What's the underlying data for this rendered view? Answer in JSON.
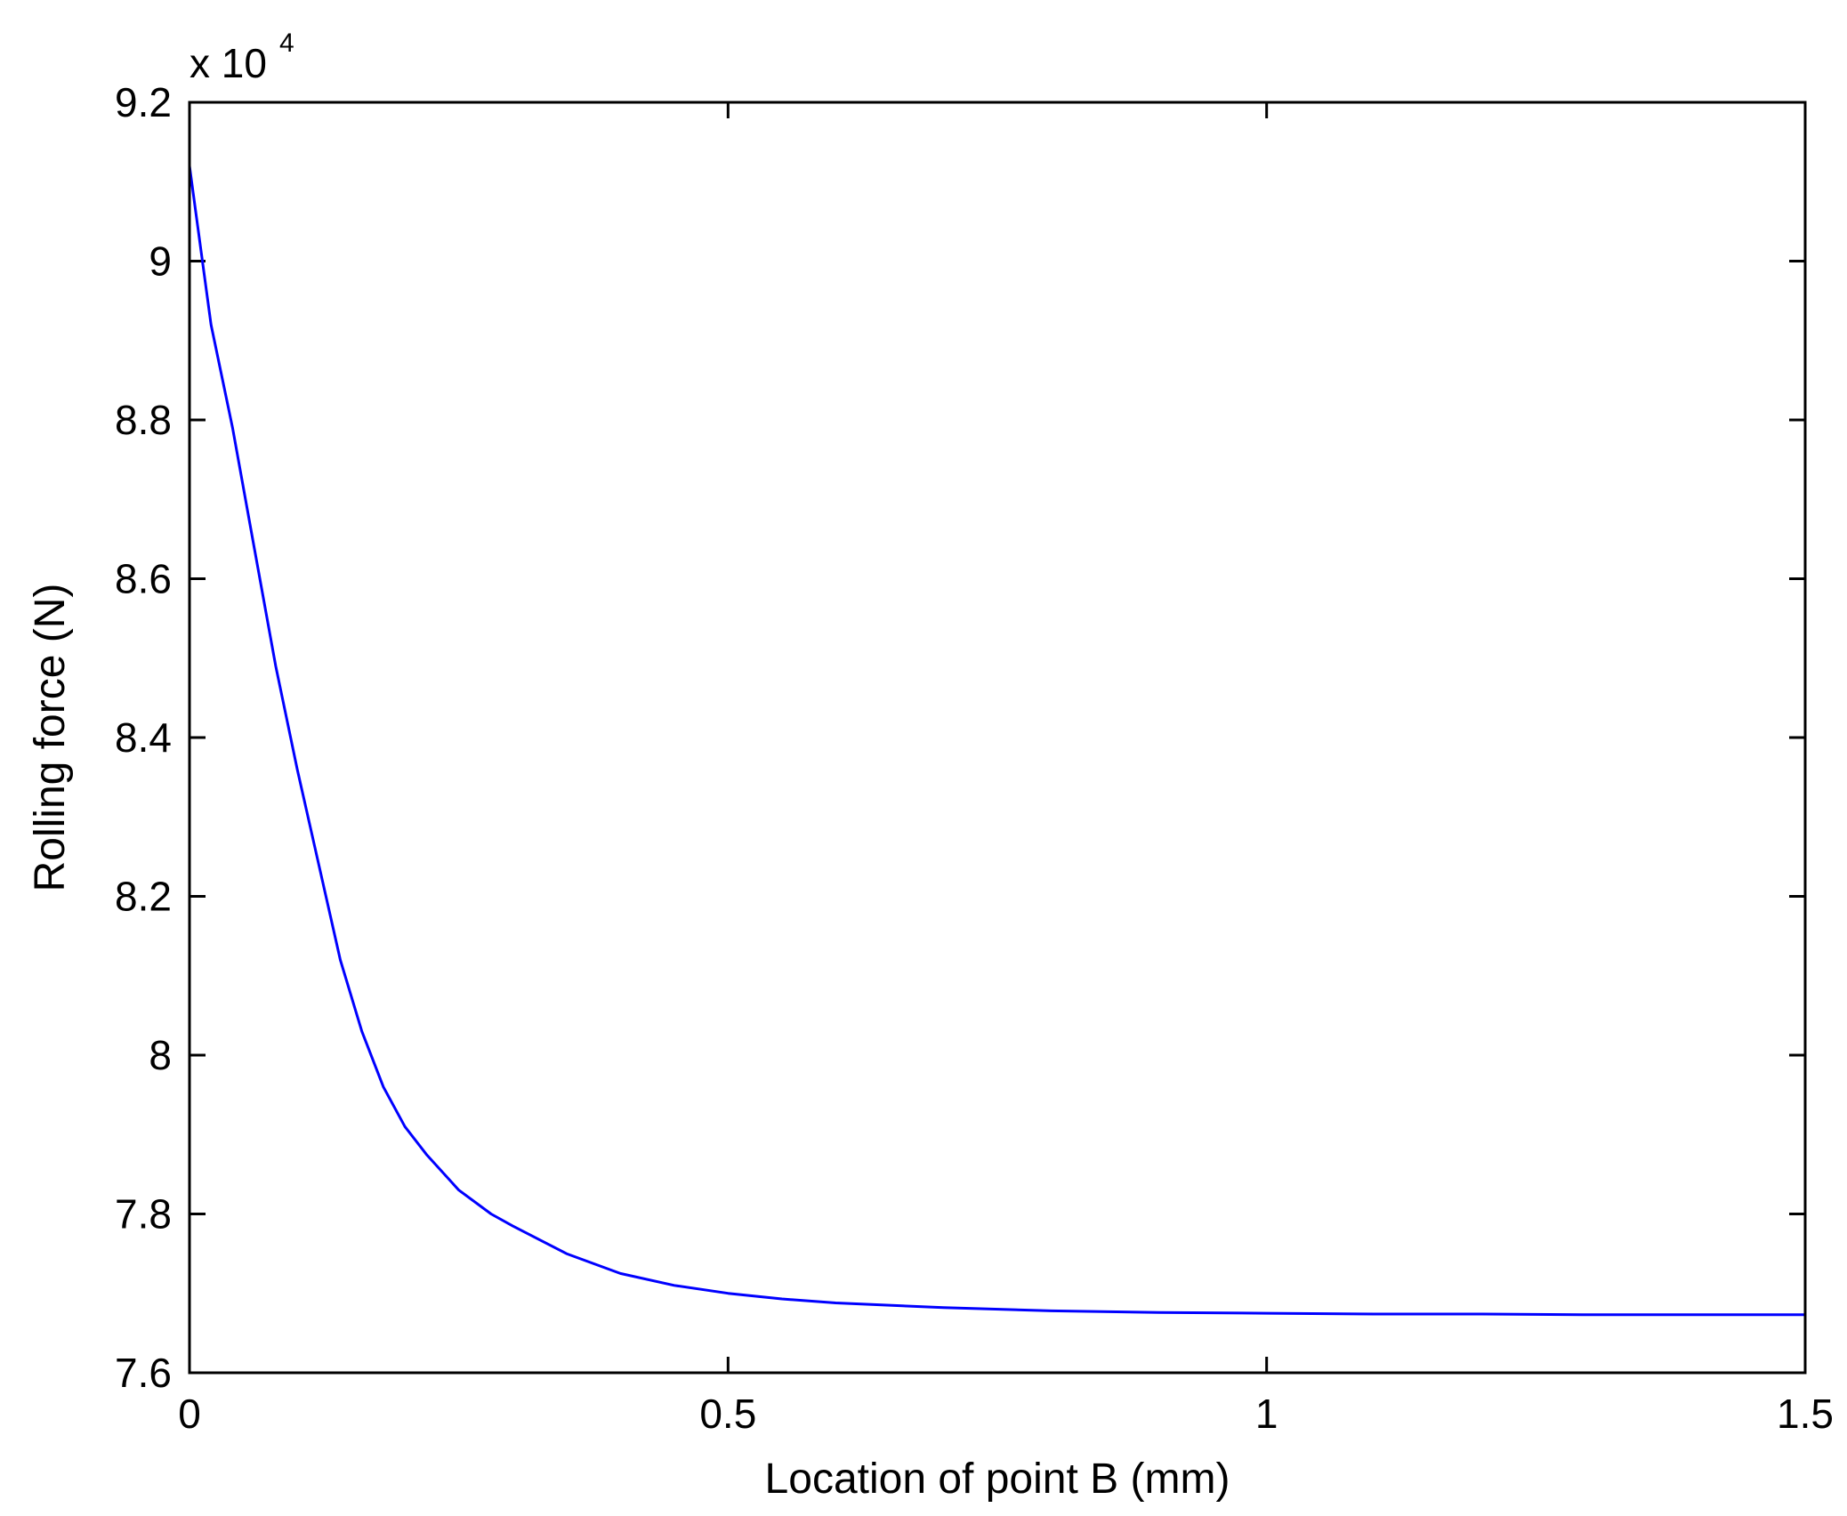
{
  "chart_data": {
    "type": "line",
    "title": "",
    "xlabel": "Location of point B (mm)",
    "ylabel": "Rolling force (N)",
    "y_exponent_label": {
      "base": "x 10",
      "power": "4"
    },
    "xlim": [
      0,
      1.5
    ],
    "ylim": [
      7.6,
      9.2
    ],
    "x_ticks": [
      0,
      0.5,
      1,
      1.5
    ],
    "x_tick_labels": [
      "0",
      "0.5",
      "1",
      "1.5"
    ],
    "y_ticks": [
      7.6,
      7.8,
      8.0,
      8.2,
      8.4,
      8.6,
      8.8,
      9.0,
      9.2
    ],
    "y_tick_labels": [
      "7.6",
      "7.8",
      "8",
      "8.2",
      "8.4",
      "8.6",
      "8.8",
      "9",
      "9.2"
    ],
    "grid": false,
    "series": [
      {
        "color": "#0000ff",
        "x": [
          0,
          0.02,
          0.04,
          0.06,
          0.08,
          0.1,
          0.12,
          0.14,
          0.16,
          0.18,
          0.2,
          0.22,
          0.25,
          0.28,
          0.3,
          0.35,
          0.4,
          0.45,
          0.5,
          0.55,
          0.6,
          0.7,
          0.8,
          0.9,
          1.0,
          1.1,
          1.2,
          1.3,
          1.4,
          1.5
        ],
        "y": [
          9.12,
          8.92,
          8.79,
          8.64,
          8.49,
          8.36,
          8.24,
          8.12,
          8.03,
          7.96,
          7.91,
          7.875,
          7.83,
          7.8,
          7.785,
          7.75,
          7.725,
          7.71,
          7.7,
          7.693,
          7.688,
          7.682,
          7.678,
          7.676,
          7.675,
          7.674,
          7.674,
          7.673,
          7.673,
          7.673
        ]
      }
    ]
  }
}
